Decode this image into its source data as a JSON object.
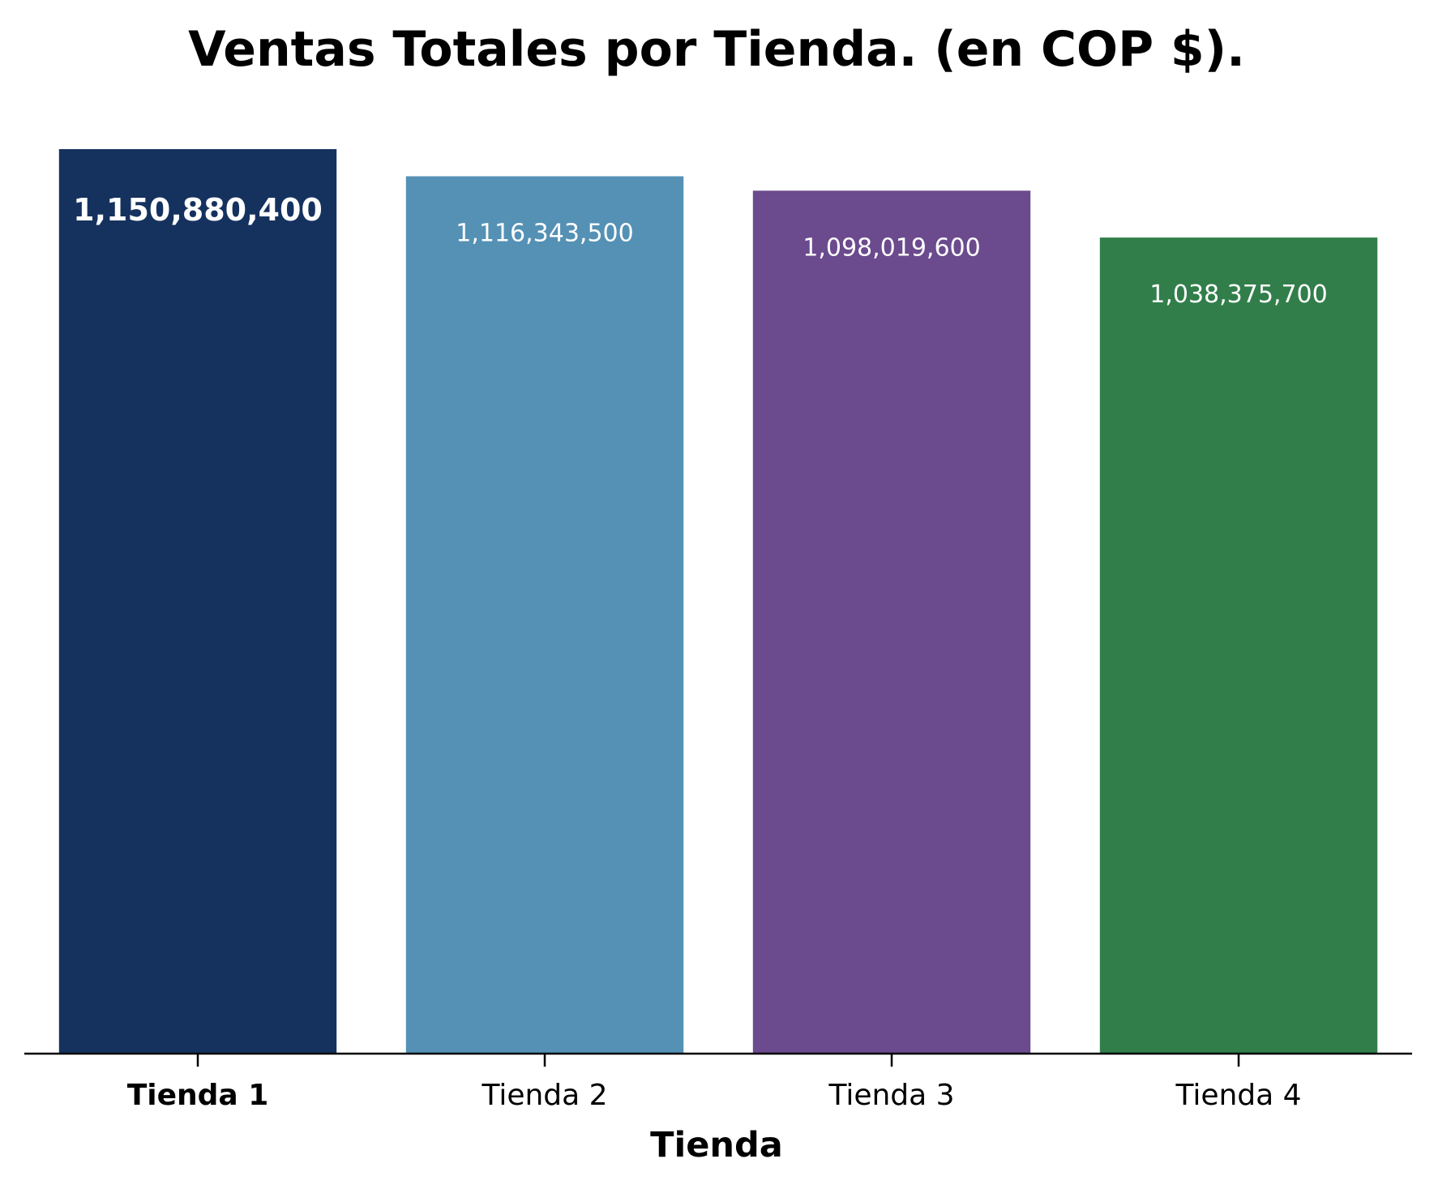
{
  "chart_data": {
    "type": "bar",
    "title": "Ventas Totales por Tienda. (en COP $).",
    "xlabel": "Tienda",
    "ylabel": "",
    "categories": [
      "Tienda 1",
      "Tienda 2",
      "Tienda 3",
      "Tienda 4"
    ],
    "values": [
      1150880400,
      1116343500,
      1098019600,
      1038375700
    ],
    "value_labels": [
      "1,150,880,400",
      "1,116,343,500",
      "1,098,019,600",
      "1,038,375,700"
    ],
    "highlight_index": 0,
    "colors": [
      "#15325f",
      "#5491b5",
      "#6b4a8d",
      "#317e4a"
    ],
    "label_color": "#ffffff",
    "ylim": [
      0,
      1150880400
    ],
    "grid": false,
    "legend": "none"
  }
}
